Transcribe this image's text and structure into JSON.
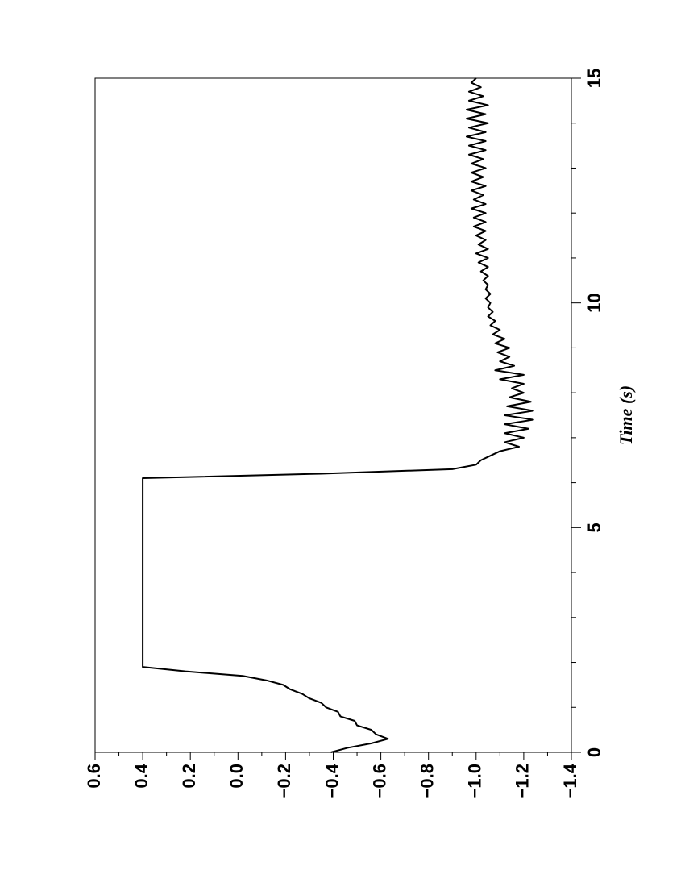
{
  "chart_data": {
    "type": "line",
    "xlabel": "Time (s)",
    "x": [
      0,
      0.1,
      0.2,
      0.3,
      0.4,
      0.5,
      0.6,
      0.7,
      0.8,
      0.9,
      1.0,
      1.1,
      1.2,
      1.3,
      1.4,
      1.5,
      1.6,
      1.7,
      1.8,
      1.9,
      6.1,
      6.2,
      6.3,
      6.4,
      6.5,
      6.6,
      6.7,
      6.8,
      6.9,
      7.0,
      7.1,
      7.2,
      7.3,
      7.4,
      7.5,
      7.6,
      7.7,
      7.8,
      7.9,
      8.0,
      8.1,
      8.2,
      8.3,
      8.4,
      8.5,
      8.6,
      8.7,
      8.8,
      8.9,
      9.0,
      9.1,
      9.2,
      9.3,
      9.4,
      9.5,
      9.6,
      9.7,
      9.8,
      9.9,
      10.0,
      10.1,
      10.2,
      10.3,
      10.4,
      10.5,
      10.6,
      10.7,
      10.8,
      10.9,
      11.0,
      11.1,
      11.2,
      11.3,
      11.4,
      11.5,
      11.6,
      11.7,
      11.8,
      11.9,
      12.0,
      12.1,
      12.2,
      12.3,
      12.4,
      12.5,
      12.6,
      12.7,
      12.8,
      12.9,
      13.0,
      13.1,
      13.2,
      13.3,
      13.4,
      13.5,
      13.6,
      13.7,
      13.8,
      13.9,
      14.0,
      14.1,
      14.2,
      14.3,
      14.4,
      14.5,
      14.6,
      14.7,
      14.8,
      14.9,
      15.0
    ],
    "series": [
      {
        "color": "#000000",
        "values": [
          -0.39,
          -0.46,
          -0.56,
          -0.63,
          -0.58,
          -0.56,
          -0.5,
          -0.49,
          -0.43,
          -0.42,
          -0.37,
          -0.35,
          -0.3,
          -0.27,
          -0.22,
          -0.19,
          -0.12,
          -0.02,
          0.22,
          0.4,
          0.4,
          -0.35,
          -0.9,
          -1.0,
          -1.02,
          -1.06,
          -1.1,
          -1.18,
          -1.12,
          -1.2,
          -1.12,
          -1.22,
          -1.12,
          -1.24,
          -1.12,
          -1.24,
          -1.13,
          -1.23,
          -1.14,
          -1.2,
          -1.15,
          -1.2,
          -1.1,
          -1.2,
          -1.08,
          -1.16,
          -1.1,
          -1.14,
          -1.09,
          -1.14,
          -1.08,
          -1.12,
          -1.07,
          -1.1,
          -1.06,
          -1.08,
          -1.05,
          -1.07,
          -1.05,
          -1.06,
          -1.04,
          -1.06,
          -1.04,
          -1.05,
          -1.03,
          -1.05,
          -1.02,
          -1.05,
          -1.01,
          -1.05,
          -1.0,
          -1.05,
          -1.01,
          -1.04,
          -1.0,
          -1.04,
          -0.99,
          -1.04,
          -0.99,
          -1.04,
          -0.98,
          -1.04,
          -0.99,
          -1.03,
          -0.98,
          -1.04,
          -0.98,
          -1.03,
          -0.98,
          -1.04,
          -0.98,
          -1.03,
          -0.97,
          -1.04,
          -0.97,
          -1.04,
          -0.96,
          -1.04,
          -0.97,
          -1.05,
          -0.96,
          -1.04,
          -0.96,
          -1.05,
          -0.97,
          -1.03,
          -0.97,
          -1.02,
          -0.98,
          -1.0
        ]
      }
    ],
    "xlim": [
      0,
      15
    ],
    "xticks": [
      0,
      5,
      10,
      15
    ],
    "xticks_minor": [
      1,
      2,
      3,
      4,
      6,
      7,
      8,
      9,
      11,
      12,
      13,
      14
    ],
    "ylim": [
      -1.4,
      0.6
    ],
    "yticks": [
      0.6,
      0.4,
      0.2,
      {
        "value": 0,
        "label": "0.0"
      },
      {
        "value": -0.2,
        "label": "−0.2"
      },
      {
        "value": -0.4,
        "label": "−0.4"
      },
      {
        "value": -0.6,
        "label": "−0.6"
      },
      {
        "value": -0.8,
        "label": "−0.8"
      },
      {
        "value": -1.0,
        "label": "−1.0"
      },
      {
        "value": -1.2,
        "label": "−1.2"
      },
      {
        "value": -1.4,
        "label": "−1.4"
      }
    ],
    "yticks_minor": [
      0.5,
      0.3,
      0.1,
      -0.1,
      -0.3,
      -0.5,
      -0.7,
      -0.9,
      -1.1,
      -1.3
    ],
    "grid": false
  }
}
